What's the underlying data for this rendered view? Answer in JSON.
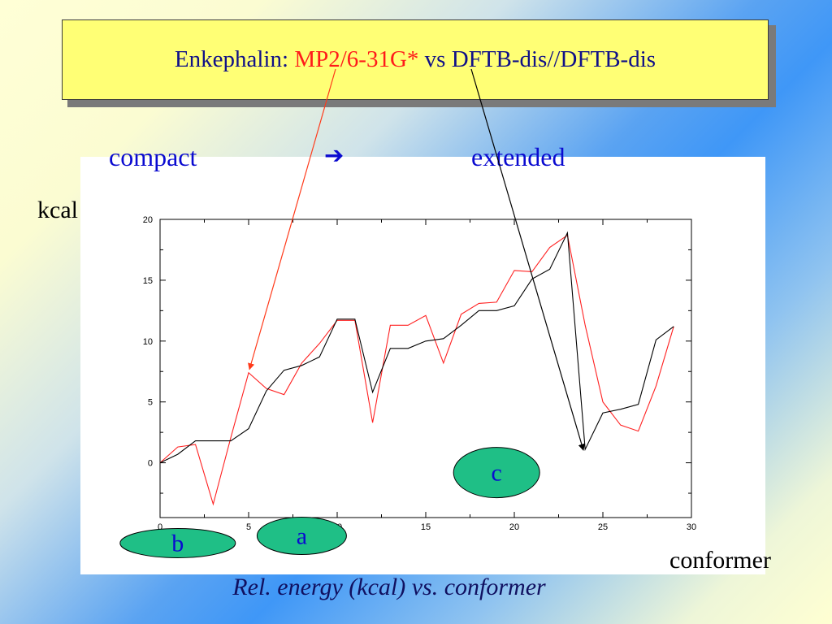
{
  "slide": {
    "title_prefix": "Enkephalin: ",
    "title_method_1": "MP2/6-31G*",
    "title_vs": " vs ",
    "title_method_2": "DFTB-dis//DFTB-dis",
    "label_compact": "compact",
    "arrow_glyph": "➔",
    "label_extended": "extended",
    "y_unit": "kcal",
    "x_unit": "conformer",
    "caption": "Rel. energy (kcal) vs. conformer"
  },
  "colors": {
    "series_mp2": "#ff2020",
    "series_dftb": "#000000",
    "ellipse_fill": "#1fbf86",
    "label_blue": "#0a0ad0"
  },
  "chart_data": {
    "type": "line",
    "x": [
      0,
      1,
      2,
      3,
      4,
      5,
      6,
      7,
      8,
      9,
      10,
      11,
      12,
      13,
      14,
      15,
      16,
      17,
      18,
      19,
      20,
      21,
      22,
      23,
      24,
      25,
      26,
      27,
      28,
      29
    ],
    "xlim": [
      0,
      30
    ],
    "ylim": [
      -4.5,
      20
    ],
    "x_ticks": [
      0,
      5,
      10,
      15,
      20,
      25,
      30
    ],
    "y_ticks": [
      0,
      5,
      10,
      15,
      20
    ],
    "x_tick_labels": [
      "0",
      "5",
      "10",
      "15",
      "20",
      "25",
      "30"
    ],
    "y_tick_labels": [
      "0",
      "5",
      "10",
      "15",
      "20"
    ],
    "grid": false,
    "series": [
      {
        "color": "#ff2020",
        "values": [
          0,
          1.3,
          1.5,
          -3.4,
          2.1,
          7.4,
          6.1,
          5.6,
          8.2,
          9.8,
          11.7,
          11.7,
          3.3,
          11.3,
          11.3,
          12.1,
          8.2,
          12.2,
          13.1,
          13.2,
          15.8,
          15.7,
          17.7,
          18.7,
          11.3,
          5.0,
          3.1,
          2.6,
          6.3,
          11.2
        ]
      },
      {
        "color": "#000000",
        "values": [
          0,
          0.7,
          1.8,
          1.8,
          1.8,
          2.8,
          5.9,
          7.6,
          8.0,
          8.7,
          11.8,
          11.8,
          5.8,
          9.4,
          9.4,
          10.0,
          10.2,
          11.3,
          12.5,
          12.5,
          12.9,
          15.1,
          15.9,
          18.9,
          1.1,
          4.1,
          4.4,
          4.8,
          10.1,
          11.2
        ]
      }
    ],
    "annotations": [
      {
        "text": "a",
        "x": 8.0,
        "y": -6.0
      },
      {
        "text": "b",
        "x": 1.0,
        "y": -6.6
      },
      {
        "text": "c",
        "x": 19.0,
        "y": -0.8
      }
    ]
  }
}
